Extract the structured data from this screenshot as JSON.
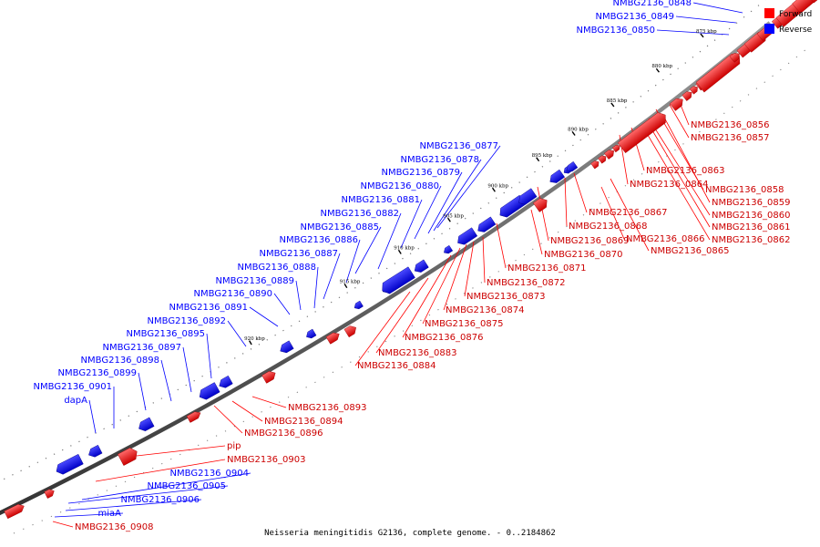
{
  "caption": "Neisseria meningitidis G2136, complete genome. - 0..2184862",
  "legend": [
    {
      "label": "Forward",
      "color": "#ff0000"
    },
    {
      "label": "Reverse",
      "color": "#0000ff"
    }
  ],
  "ticks": [
    "865 kbp",
    "870 kbp",
    "875 kbp",
    "880 kbp",
    "885 kbp",
    "890 kbp",
    "895 kbp",
    "900 kbp",
    "905 kbp",
    "910 kbp",
    "915 kbp",
    "920 kbp"
  ],
  "genes_reverse": [
    "NMBG2136_0848",
    "NMBG2136_0849",
    "NMBG2136_0850",
    "NMBG2136_0877",
    "NMBG2136_0878",
    "NMBG2136_0879",
    "NMBG2136_0880",
    "NMBG2136_0881",
    "NMBG2136_0882",
    "NMBG2136_0885",
    "NMBG2136_0886",
    "NMBG2136_0887",
    "NMBG2136_0888",
    "NMBG2136_0889",
    "NMBG2136_0890",
    "NMBG2136_0891",
    "NMBG2136_0892",
    "NMBG2136_0895",
    "NMBG2136_0897",
    "NMBG2136_0898",
    "NMBG2136_0899",
    "NMBG2136_0901",
    "dapA",
    "NMBG2136_0904",
    "NMBG2136_0905",
    "NMBG2136_0906",
    "miaA"
  ],
  "genes_forward": [
    "NMBG2136_0856",
    "NMBG2136_0857",
    "NMBG2136_0863",
    "NMBG2136_0864",
    "NMBG2136_0858",
    "NMBG2136_0859",
    "NMBG2136_0860",
    "NMBG2136_0861",
    "NMBG2136_0862",
    "NMBG2136_0866",
    "NMBG2136_0865",
    "NMBG2136_0867",
    "NMBG2136_0868",
    "NMBG2136_0869",
    "NMBG2136_0870",
    "NMBG2136_0871",
    "NMBG2136_0872",
    "NMBG2136_0873",
    "NMBG2136_0874",
    "NMBG2136_0875",
    "NMBG2136_0876",
    "NMBG2136_0883",
    "NMBG2136_0884",
    "NMBG2136_0893",
    "NMBG2136_0894",
    "NMBG2136_0896",
    "pip",
    "NMBG2136_0903",
    "NMBG2136_0908"
  ]
}
